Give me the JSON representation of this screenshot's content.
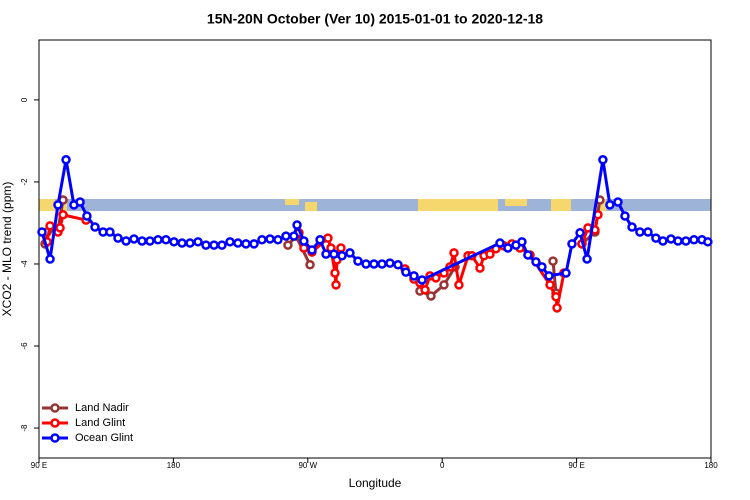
{
  "chart_data": {
    "type": "line",
    "title": "15N-20N October (Ver 10)   2015-01-01 to 2020-12-18",
    "x_label": "Longitude",
    "y_label": "XCO2 - MLO trend (ppm)",
    "xlim": [
      90,
      540
    ],
    "ylim": [
      -8.73,
      1.46
    ],
    "xticks": [
      {
        "value": 90,
        "label": "90 E"
      },
      {
        "value": 180,
        "label": "180"
      },
      {
        "value": 270,
        "label": "90 W"
      },
      {
        "value": 360,
        "label": "0"
      },
      {
        "value": 450,
        "label": "90 E"
      },
      {
        "value": 540,
        "label": "180"
      }
    ],
    "yticks": [
      0,
      -2,
      -4,
      -6,
      -8
    ],
    "legend": "bottom-left",
    "series": [
      {
        "name": "Land Nadir",
        "color": "#993333",
        "x": [
          94.0,
          95.4,
          102.7,
          106.1,
          null,
          256.7,
          262.1,
          271.5,
          null,
          345.1,
          352.5,
          361.2,
          368.6,
          null,
          434.2,
          436.2,
          null,
          453.6,
          462.3,
          465.6
        ],
        "values": [
          -3.51,
          -3.22,
          -3.17,
          -2.44,
          null,
          -3.54,
          -3.32,
          -4.02,
          null,
          -4.66,
          -4.78,
          -4.51,
          -4.07,
          null,
          -3.93,
          -4.71,
          null,
          -3.51,
          -3.22,
          -2.44
        ]
      },
      {
        "name": "Land Glint",
        "color": "#ff0000",
        "x": [
          95.4,
          97.4,
          102.7,
          104.1,
          106.1,
          121.5,
          null,
          264.1,
          267.4,
          272.8,
          283.5,
          285.5,
          288.2,
          288.9,
          289.5,
          292.2,
          null,
          335.1,
          341.1,
          345.1,
          348.5,
          351.8,
          355.8,
          361.2,
          365.2,
          367.9,
          371.2,
          377.3,
          379.9,
          385.3,
          388.0,
          392.0,
          396.0,
          401.4,
          406.7,
          412.1,
          418.8,
          432.2,
          436.2,
          436.9,
          441.5,
          null,
          453.6,
          457.6,
          462.3,
          464.3
        ],
        "values": [
          -3.46,
          -3.07,
          -3.22,
          -3.12,
          -2.8,
          -2.93,
          null,
          -3.24,
          -3.61,
          -3.71,
          -3.37,
          -3.61,
          -4.22,
          -4.51,
          -3.9,
          -3.61,
          null,
          -4.12,
          -4.37,
          -4.46,
          -4.63,
          -4.29,
          -4.34,
          -4.22,
          -4.07,
          -3.73,
          -4.51,
          -3.8,
          -3.8,
          -4.1,
          -3.8,
          -3.76,
          -3.63,
          -3.56,
          -3.51,
          -3.61,
          -3.78,
          -4.51,
          -4.8,
          -5.07,
          -4.22,
          null,
          -3.51,
          -3.12,
          -3.17,
          -2.8
        ]
      },
      {
        "name": "Ocean Glint",
        "color": "#0000ff",
        "x": [
          92.0,
          97.4,
          102.7,
          108.1,
          113.4,
          117.5,
          122.1,
          127.5,
          132.9,
          137.5,
          142.9,
          148.3,
          153.6,
          159.0,
          164.3,
          169.7,
          175.0,
          180.4,
          185.8,
          191.1,
          196.5,
          201.8,
          207.2,
          212.5,
          217.9,
          223.2,
          228.6,
          234.0,
          239.3,
          244.7,
          250.0,
          255.4,
          260.7,
          262.8,
          267.4,
          272.8,
          278.2,
          282.2,
          287.5,
          292.9,
          298.2,
          303.6,
          309.0,
          314.3,
          319.7,
          325.0,
          330.4,
          335.7,
          341.1,
          346.5,
          398.7,
          404.0,
          409.4,
          413.4,
          417.4,
          422.8,
          426.8,
          431.5,
          442.9,
          446.9,
          452.3,
          457.0,
          467.6,
          472.3,
          477.7,
          482.4,
          487.1,
          492.4,
          497.8,
          503.1,
          507.8,
          513.2,
          517.9,
          523.2,
          528.6,
          533.9,
          537.9
        ],
        "values": [
          -3.22,
          -3.88,
          -2.56,
          -1.46,
          -2.56,
          -2.49,
          -2.83,
          -3.1,
          -3.22,
          -3.22,
          -3.37,
          -3.44,
          -3.39,
          -3.44,
          -3.44,
          -3.41,
          -3.41,
          -3.46,
          -3.49,
          -3.49,
          -3.46,
          -3.54,
          -3.54,
          -3.54,
          -3.46,
          -3.49,
          -3.51,
          -3.51,
          -3.41,
          -3.39,
          -3.41,
          -3.32,
          -3.32,
          -3.05,
          -3.44,
          -3.66,
          -3.41,
          -3.76,
          -3.76,
          -3.8,
          -3.73,
          -3.93,
          -4.0,
          -4.0,
          -4.0,
          -3.98,
          -4.02,
          -4.2,
          -4.29,
          -4.39,
          -3.49,
          -3.61,
          -3.54,
          -3.46,
          -3.78,
          -3.95,
          -4.07,
          -4.29,
          -4.22,
          -3.51,
          -3.24,
          -3.88,
          -1.46,
          -2.56,
          -2.49,
          -2.83,
          -3.1,
          -3.22,
          -3.22,
          -3.37,
          -3.44,
          -3.39,
          -3.44,
          -3.44,
          -3.41,
          -3.41,
          -3.46
        ]
      }
    ]
  }
}
